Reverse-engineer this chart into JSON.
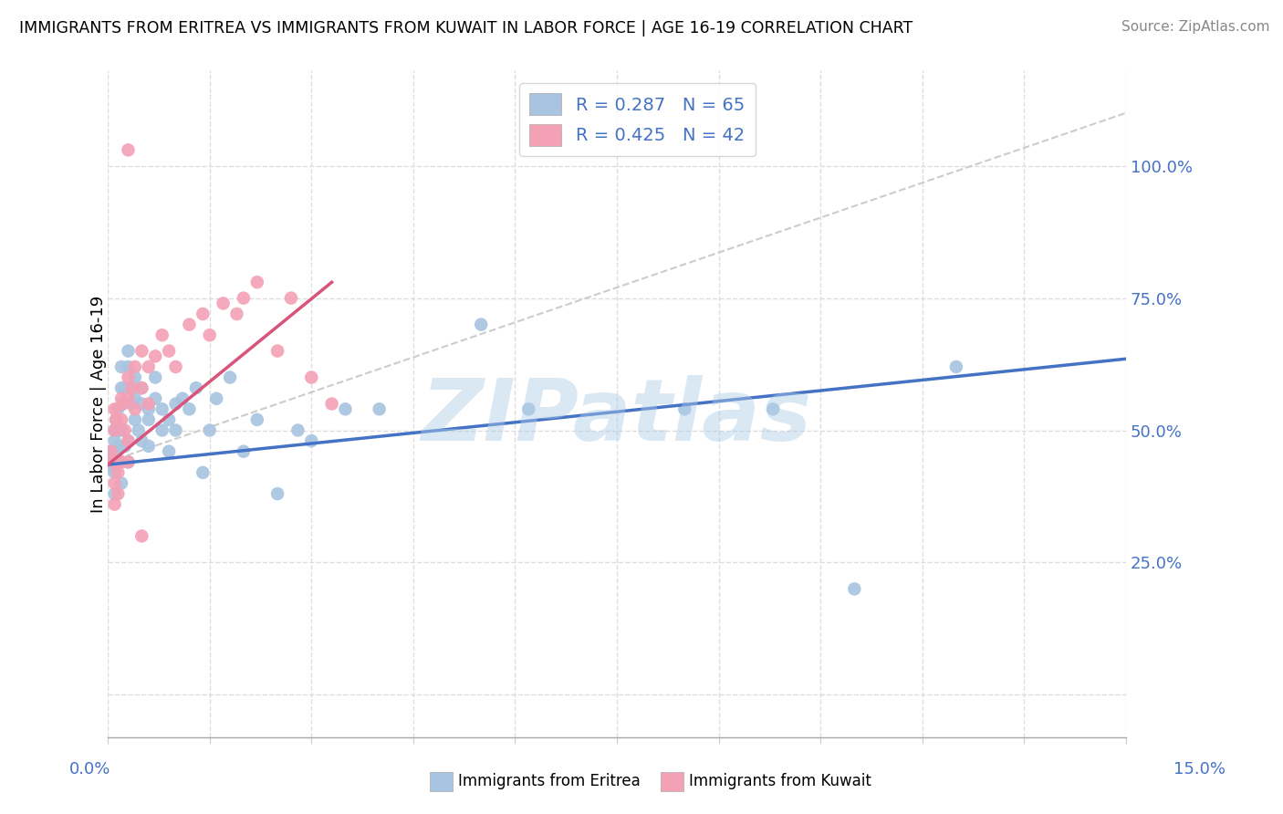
{
  "title": "IMMIGRANTS FROM ERITREA VS IMMIGRANTS FROM KUWAIT IN LABOR FORCE | AGE 16-19 CORRELATION CHART",
  "source": "Source: ZipAtlas.com",
  "ylabel": "In Labor Force | Age 16-19",
  "legend_label_eritrea": "Immigrants from Eritrea",
  "legend_label_kuwait": "Immigrants from Kuwait",
  "eritrea_color": "#a8c4e0",
  "kuwait_color": "#f4a0b5",
  "eritrea_line_color": "#4472c4",
  "kuwait_line_color": "#d9547a",
  "ref_line_color": "#cccccc",
  "R_eritrea": 0.287,
  "N_eritrea": 65,
  "R_kuwait": 0.425,
  "N_kuwait": 42,
  "xlim": [
    0.0,
    0.15
  ],
  "ylim": [
    -0.08,
    1.18
  ],
  "ytick_positions": [
    0.0,
    0.25,
    0.5,
    0.75,
    1.0
  ],
  "ytick_labels": [
    "",
    "25.0%",
    "50.0%",
    "75.0%",
    "100.0%"
  ],
  "watermark": "ZIPatlas",
  "eritrea_x": [
    0.0005,
    0.0007,
    0.0008,
    0.001,
    0.001,
    0.001,
    0.001,
    0.001,
    0.0012,
    0.0013,
    0.0015,
    0.0015,
    0.0017,
    0.002,
    0.002,
    0.002,
    0.002,
    0.002,
    0.0022,
    0.0025,
    0.0025,
    0.003,
    0.003,
    0.003,
    0.003,
    0.0032,
    0.0035,
    0.004,
    0.004,
    0.004,
    0.0045,
    0.005,
    0.005,
    0.005,
    0.006,
    0.006,
    0.006,
    0.007,
    0.007,
    0.008,
    0.008,
    0.009,
    0.009,
    0.01,
    0.01,
    0.011,
    0.012,
    0.013,
    0.014,
    0.015,
    0.016,
    0.018,
    0.02,
    0.022,
    0.025,
    0.028,
    0.03,
    0.035,
    0.04,
    0.055,
    0.062,
    0.085,
    0.098,
    0.11,
    0.125
  ],
  "eritrea_y": [
    0.46,
    0.43,
    0.44,
    0.48,
    0.5,
    0.42,
    0.38,
    0.44,
    0.52,
    0.46,
    0.54,
    0.47,
    0.5,
    0.62,
    0.58,
    0.44,
    0.4,
    0.5,
    0.55,
    0.58,
    0.47,
    0.65,
    0.62,
    0.44,
    0.48,
    0.58,
    0.55,
    0.6,
    0.52,
    0.56,
    0.5,
    0.58,
    0.55,
    0.48,
    0.54,
    0.52,
    0.47,
    0.6,
    0.56,
    0.54,
    0.5,
    0.52,
    0.46,
    0.55,
    0.5,
    0.56,
    0.54,
    0.58,
    0.42,
    0.5,
    0.56,
    0.6,
    0.46,
    0.52,
    0.38,
    0.5,
    0.48,
    0.54,
    0.54,
    0.7,
    0.54,
    0.54,
    0.54,
    0.2,
    0.62
  ],
  "kuwait_x": [
    0.0005,
    0.0007,
    0.001,
    0.001,
    0.001,
    0.001,
    0.0012,
    0.0015,
    0.0015,
    0.002,
    0.002,
    0.002,
    0.0022,
    0.0025,
    0.003,
    0.003,
    0.003,
    0.003,
    0.0035,
    0.004,
    0.004,
    0.005,
    0.005,
    0.006,
    0.006,
    0.007,
    0.008,
    0.009,
    0.01,
    0.012,
    0.014,
    0.015,
    0.017,
    0.019,
    0.02,
    0.022,
    0.025,
    0.027,
    0.03,
    0.033,
    0.003,
    0.005
  ],
  "kuwait_y": [
    0.46,
    0.44,
    0.54,
    0.5,
    0.4,
    0.36,
    0.52,
    0.42,
    0.38,
    0.56,
    0.52,
    0.44,
    0.55,
    0.5,
    0.6,
    0.56,
    0.48,
    0.44,
    0.58,
    0.62,
    0.54,
    0.65,
    0.58,
    0.62,
    0.55,
    0.64,
    0.68,
    0.65,
    0.62,
    0.7,
    0.72,
    0.68,
    0.74,
    0.72,
    0.75,
    0.78,
    0.65,
    0.75,
    0.6,
    0.55,
    1.03,
    0.3
  ],
  "eritrea_trend_x0": 0.0,
  "eritrea_trend_y0": 0.435,
  "eritrea_trend_x1": 0.15,
  "eritrea_trend_y1": 0.635,
  "kuwait_trend_x0": 0.0,
  "kuwait_trend_y0": 0.435,
  "kuwait_trend_x1": 0.033,
  "kuwait_trend_y1": 0.78
}
